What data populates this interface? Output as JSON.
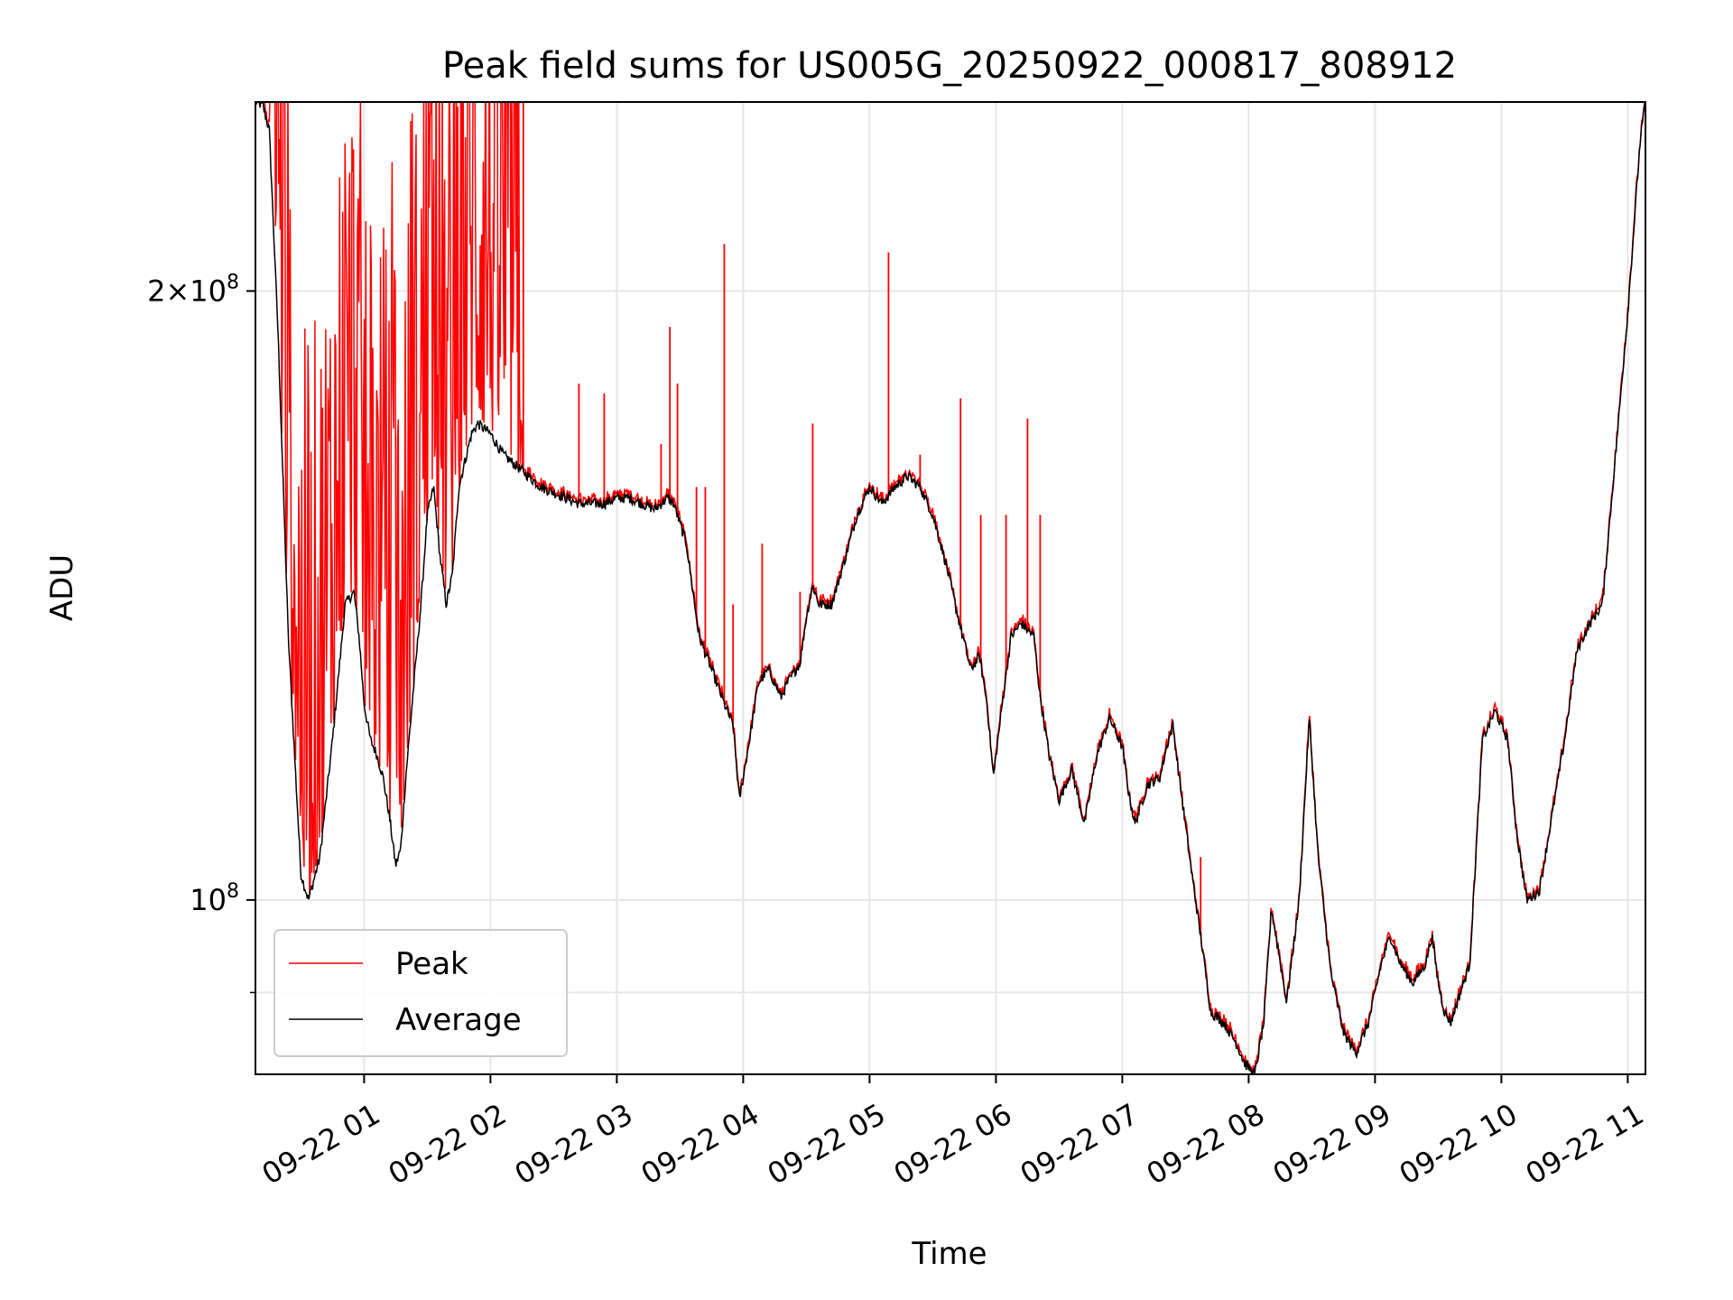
{
  "chart_data": {
    "type": "line",
    "title": "Peak field sums for US005G_20250922_000817_808912",
    "xlabel": "Time",
    "ylabel": "ADU",
    "yscale": "log",
    "x_range_hours": [
      0.14,
      11.14
    ],
    "ylim": [
      82000000,
      248000000
    ],
    "grid": true,
    "legend_position": "lower-left",
    "colors": {
      "peak": "#ff0000",
      "average": "#000000",
      "grid": "#e6e6e6"
    },
    "x_ticks": [
      {
        "hour": 1,
        "label": "09-22 01"
      },
      {
        "hour": 2,
        "label": "09-22 02"
      },
      {
        "hour": 3,
        "label": "09-22 03"
      },
      {
        "hour": 4,
        "label": "09-22 04"
      },
      {
        "hour": 5,
        "label": "09-22 05"
      },
      {
        "hour": 6,
        "label": "09-22 06"
      },
      {
        "hour": 7,
        "label": "09-22 07"
      },
      {
        "hour": 8,
        "label": "09-22 08"
      },
      {
        "hour": 9,
        "label": "09-22 09"
      },
      {
        "hour": 10,
        "label": "09-22 10"
      },
      {
        "hour": 11,
        "label": "09-22 11"
      }
    ],
    "y_major_ticks": [
      {
        "value": 100000000,
        "mantissa": "",
        "base": "10",
        "exp": "8"
      },
      {
        "value": 200000000,
        "mantissa": "2×",
        "base": "10",
        "exp": "8"
      }
    ],
    "y_minor_ticks": [
      90000000
    ],
    "series": [
      {
        "name": "Average",
        "hours": [
          0.14,
          0.2,
          0.25,
          0.32,
          0.4,
          0.5,
          0.56,
          0.65,
          0.75,
          0.85,
          0.92,
          0.96,
          1.0,
          1.05,
          1.1,
          1.15,
          1.2,
          1.25,
          1.29,
          1.33,
          1.38,
          1.45,
          1.5,
          1.55,
          1.6,
          1.65,
          1.7,
          1.75,
          1.8,
          1.85,
          1.9,
          2.0,
          2.1,
          2.2,
          2.3,
          2.4,
          2.5,
          2.6,
          2.7,
          2.8,
          2.9,
          3.0,
          3.1,
          3.2,
          3.3,
          3.4,
          3.45,
          3.55,
          3.65,
          3.75,
          3.85,
          3.92,
          3.97,
          4.05,
          4.12,
          4.2,
          4.3,
          4.35,
          4.45,
          4.5,
          4.55,
          4.6,
          4.7,
          4.8,
          4.9,
          5.0,
          5.1,
          5.2,
          5.3,
          5.4,
          5.5,
          5.6,
          5.7,
          5.8,
          5.87,
          5.93,
          5.98,
          6.05,
          6.12,
          6.2,
          6.3,
          6.35,
          6.42,
          6.5,
          6.6,
          6.7,
          6.8,
          6.9,
          6.95,
          7.0,
          7.05,
          7.1,
          7.2,
          7.3,
          7.35,
          7.4,
          7.45,
          7.55,
          7.62,
          7.7,
          7.8,
          7.9,
          7.97,
          8.05,
          8.12,
          8.18,
          8.24,
          8.3,
          8.4,
          8.48,
          8.55,
          8.65,
          8.75,
          8.85,
          8.95,
          9.05,
          9.12,
          9.2,
          9.3,
          9.4,
          9.45,
          9.5,
          9.55,
          9.6,
          9.65,
          9.75,
          9.85,
          9.95,
          10.05,
          10.12,
          10.2,
          10.3,
          10.4,
          10.5,
          10.6,
          10.7,
          10.8,
          10.9,
          11.0,
          11.1,
          11.14
        ],
        "values": [
          248000000,
          247000000,
          240000000,
          190000000,
          135000000,
          103000000,
          100000000,
          105000000,
          120000000,
          140000000,
          142000000,
          135000000,
          125000000,
          120000000,
          118000000,
          115000000,
          110000000,
          104000000,
          106000000,
          115000000,
          125000000,
          140000000,
          155000000,
          160000000,
          148000000,
          140000000,
          145000000,
          160000000,
          165000000,
          170000000,
          172000000,
          170000000,
          166000000,
          164000000,
          162000000,
          160000000,
          159000000,
          158000000,
          157000000,
          157000000,
          157000000,
          158000000,
          158000000,
          157000000,
          156000000,
          158000000,
          157000000,
          150000000,
          135000000,
          130000000,
          125000000,
          122000000,
          112000000,
          120000000,
          128000000,
          130000000,
          126000000,
          128000000,
          131000000,
          138000000,
          143000000,
          140000000,
          140000000,
          147000000,
          155000000,
          160000000,
          157000000,
          160000000,
          162000000,
          160000000,
          155000000,
          147000000,
          138000000,
          130000000,
          132000000,
          125000000,
          115000000,
          125000000,
          135000000,
          137000000,
          135000000,
          126000000,
          118000000,
          112000000,
          116000000,
          109000000,
          118000000,
          123000000,
          121000000,
          119000000,
          113000000,
          109000000,
          114000000,
          115000000,
          119000000,
          122000000,
          115000000,
          103000000,
          96000000,
          88000000,
          87000000,
          85000000,
          83000000,
          82000000,
          87000000,
          99000000,
          94000000,
          89000000,
          100000000,
          123000000,
          105000000,
          92000000,
          86000000,
          84000000,
          87000000,
          93000000,
          96000000,
          93000000,
          91000000,
          93000000,
          96000000,
          91000000,
          88000000,
          87000000,
          89000000,
          93000000,
          120000000,
          124000000,
          120000000,
          108000000,
          100000000,
          101000000,
          110000000,
          120000000,
          133000000,
          137000000,
          140000000,
          165000000,
          195000000,
          238000000,
          248000000
        ],
        "color": "#000000"
      },
      {
        "name": "Peak",
        "color": "#ff0000",
        "noisy_until_hour": 2.25,
        "spikes": [
          {
            "hour": 2.22,
            "value": 218000000
          },
          {
            "hour": 2.26,
            "value": 248000000
          },
          {
            "hour": 2.7,
            "value": 180000000
          },
          {
            "hour": 2.9,
            "value": 178000000
          },
          {
            "hour": 3.35,
            "value": 168000000
          },
          {
            "hour": 3.42,
            "value": 192000000
          },
          {
            "hour": 3.48,
            "value": 180000000
          },
          {
            "hour": 3.63,
            "value": 160000000
          },
          {
            "hour": 3.7,
            "value": 160000000
          },
          {
            "hour": 3.85,
            "value": 211000000
          },
          {
            "hour": 3.92,
            "value": 140000000
          },
          {
            "hour": 4.15,
            "value": 150000000
          },
          {
            "hour": 4.45,
            "value": 142000000
          },
          {
            "hour": 4.55,
            "value": 172000000
          },
          {
            "hour": 5.15,
            "value": 209000000
          },
          {
            "hour": 5.25,
            "value": 162000000
          },
          {
            "hour": 5.4,
            "value": 166000000
          },
          {
            "hour": 5.72,
            "value": 177000000
          },
          {
            "hour": 5.88,
            "value": 155000000
          },
          {
            "hour": 6.08,
            "value": 155000000
          },
          {
            "hour": 6.25,
            "value": 173000000
          },
          {
            "hour": 6.35,
            "value": 155000000
          },
          {
            "hour": 7.62,
            "value": 105000000
          }
        ]
      }
    ]
  }
}
